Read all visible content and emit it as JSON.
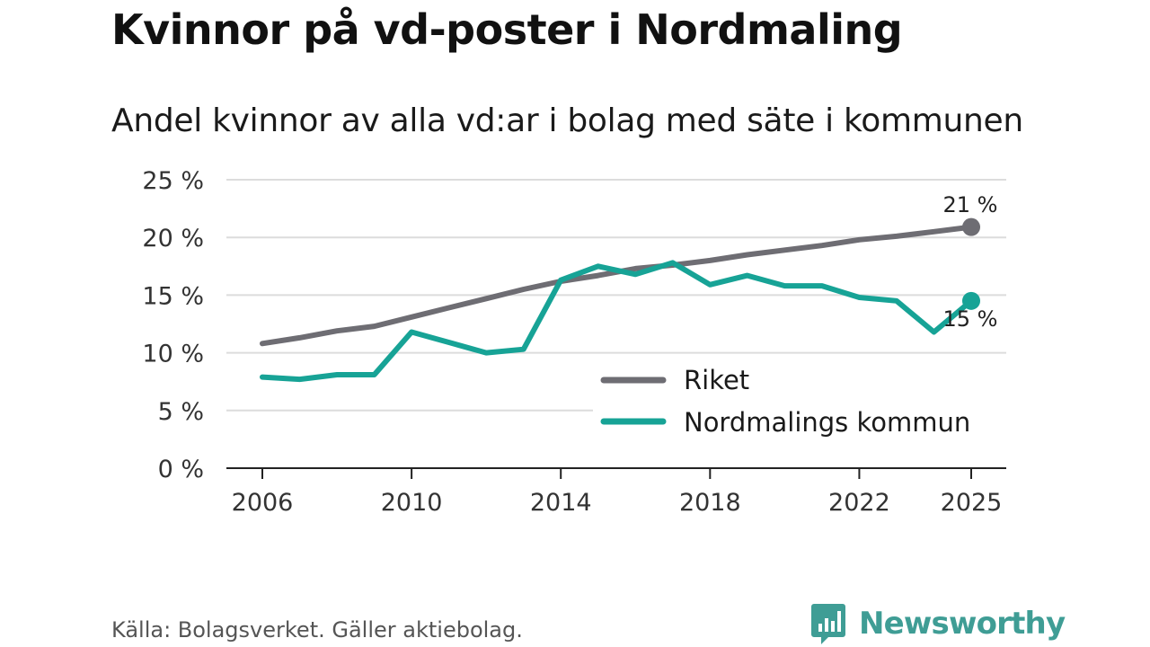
{
  "title": "Kvinnor på vd-poster i Nordmaling",
  "subtitle": "Andel kvinnor av alla vd:ar i bolag med säte i kommunen",
  "source": "Källa: Bolagsverket. Gäller aktiebolag.",
  "brand": "Newsworthy",
  "colors": {
    "riket": "#6e6d73",
    "nordmaling": "#17a396",
    "brand": "#3f9d95",
    "grid": "#dcdcdc"
  },
  "chart_data": {
    "type": "line",
    "x": [
      2006,
      2007,
      2008,
      2009,
      2010,
      2011,
      2012,
      2013,
      2014,
      2015,
      2016,
      2017,
      2018,
      2019,
      2020,
      2021,
      2022,
      2023,
      2024,
      2025
    ],
    "series": [
      {
        "name": "Riket",
        "values": [
          10.8,
          11.3,
          11.9,
          12.3,
          13.1,
          13.9,
          14.7,
          15.5,
          16.2,
          16.7,
          17.3,
          17.6,
          18.0,
          18.5,
          18.9,
          19.3,
          19.8,
          20.1,
          20.5,
          20.9
        ]
      },
      {
        "name": "Nordmalings kommun",
        "values": [
          7.9,
          7.7,
          8.1,
          8.1,
          11.8,
          10.9,
          10.0,
          10.3,
          16.3,
          17.5,
          16.8,
          17.8,
          15.9,
          16.7,
          15.8,
          15.8,
          14.8,
          14.5,
          11.8,
          14.5
        ]
      }
    ],
    "end_labels": [
      "21 %",
      "15 %"
    ],
    "y_ticks": [
      0,
      5,
      10,
      15,
      20,
      25
    ],
    "y_tick_labels": [
      "0 %",
      "5 %",
      "10 %",
      "15 %",
      "20 %",
      "25 %"
    ],
    "x_ticks": [
      2006,
      2010,
      2014,
      2018,
      2022,
      2025
    ],
    "x_tick_labels": [
      "2006",
      "2010",
      "2014",
      "2018",
      "2022",
      "2025"
    ],
    "ylim": [
      0,
      25
    ],
    "xlim": [
      2006,
      2025
    ],
    "xlabel": "",
    "ylabel": "",
    "legend": [
      {
        "label": "Riket"
      },
      {
        "label": "Nordmalings kommun"
      }
    ],
    "legend_position": "lower-right"
  }
}
